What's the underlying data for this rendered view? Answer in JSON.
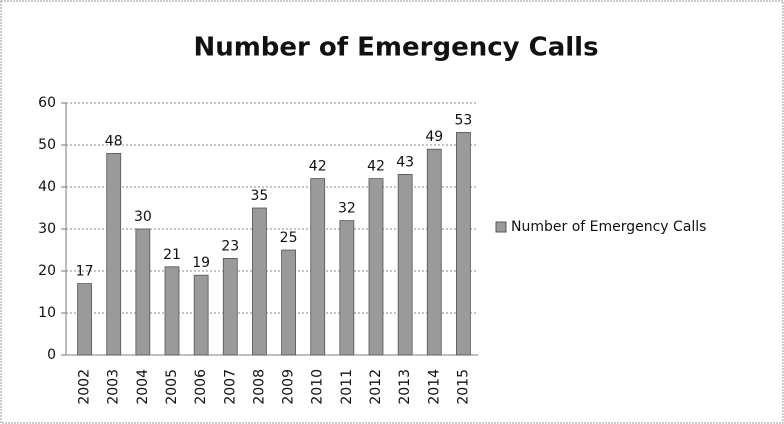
{
  "chart_data": {
    "type": "bar",
    "title": "Number of Emergency Calls",
    "categories": [
      "2002",
      "2003",
      "2004",
      "2005",
      "2006",
      "2007",
      "2008",
      "2009",
      "2010",
      "2011",
      "2012",
      "2013",
      "2014",
      "2015"
    ],
    "series": [
      {
        "name": "Number of Emergency Calls",
        "color": "#9a9a9a",
        "values": [
          17,
          48,
          30,
          21,
          19,
          23,
          35,
          25,
          42,
          32,
          42,
          43,
          49,
          53
        ]
      }
    ],
    "ylim": [
      0,
      60
    ],
    "yticks": [
      0,
      10,
      20,
      30,
      40,
      50,
      60
    ],
    "grid": true,
    "legend": "right"
  }
}
